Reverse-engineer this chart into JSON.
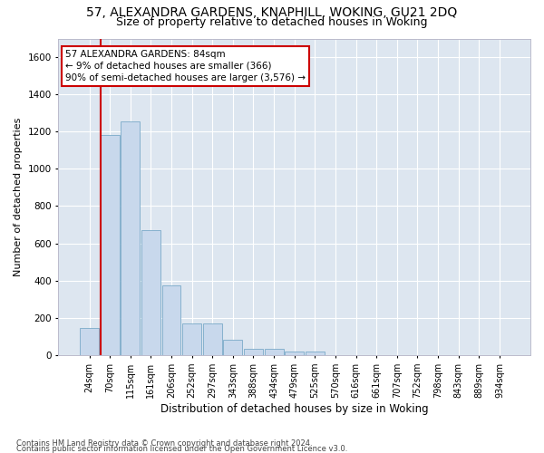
{
  "title": "57, ALEXANDRA GARDENS, KNAPHILL, WOKING, GU21 2DQ",
  "subtitle": "Size of property relative to detached houses in Woking",
  "xlabel": "Distribution of detached houses by size in Woking",
  "ylabel": "Number of detached properties",
  "categories": [
    "24sqm",
    "70sqm",
    "115sqm",
    "161sqm",
    "206sqm",
    "252sqm",
    "297sqm",
    "343sqm",
    "388sqm",
    "434sqm",
    "479sqm",
    "525sqm",
    "570sqm",
    "616sqm",
    "661sqm",
    "707sqm",
    "752sqm",
    "798sqm",
    "843sqm",
    "889sqm",
    "934sqm"
  ],
  "values": [
    145,
    1180,
    1255,
    670,
    375,
    170,
    170,
    80,
    35,
    35,
    20,
    20,
    0,
    0,
    0,
    0,
    0,
    0,
    0,
    0,
    0
  ],
  "bar_color": "#c8d8ec",
  "bar_edge_color": "#7aaac8",
  "vline_x_index": 1,
  "vline_color": "#cc0000",
  "annotation_line1": "57 ALEXANDRA GARDENS: 84sqm",
  "annotation_line2": "← 9% of detached houses are smaller (366)",
  "annotation_line3": "90% of semi-detached houses are larger (3,576) →",
  "background_color": "#dde6f0",
  "grid_color": "#ffffff",
  "ylim": [
    0,
    1700
  ],
  "yticks": [
    0,
    200,
    400,
    600,
    800,
    1000,
    1200,
    1400,
    1600
  ],
  "footer_line1": "Contains HM Land Registry data © Crown copyright and database right 2024.",
  "footer_line2": "Contains public sector information licensed under the Open Government Licence v3.0.",
  "title_fontsize": 10,
  "subtitle_fontsize": 9,
  "ylabel_fontsize": 8,
  "xlabel_fontsize": 8.5,
  "tick_fontsize": 7,
  "annot_fontsize": 7.5,
  "footer_fontsize": 6
}
